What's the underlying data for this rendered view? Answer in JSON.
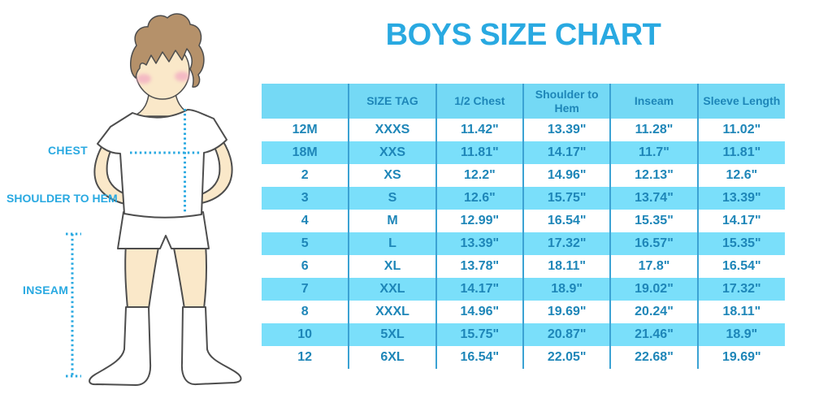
{
  "title": "BOYS SIZE CHART",
  "figure": {
    "labels": {
      "chest": "CHEST",
      "shoulder_to_hem": "SHOULDER TO HEM",
      "inseam": "INSEAM"
    }
  },
  "chart_data": {
    "type": "table",
    "title": "BOYS SIZE CHART",
    "columns": [
      "",
      "SIZE TAG",
      "1/2 Chest",
      "Shoulder to Hem",
      "Inseam",
      "Sleeve Length"
    ],
    "rows": [
      [
        "12M",
        "XXXS",
        "11.42\"",
        "13.39\"",
        "11.28\"",
        "11.02\""
      ],
      [
        "18M",
        "XXS",
        "11.81\"",
        "14.17\"",
        "11.7\"",
        "11.81\""
      ],
      [
        "2",
        "XS",
        "12.2\"",
        "14.96\"",
        "12.13\"",
        "12.6\""
      ],
      [
        "3",
        "S",
        "12.6\"",
        "15.75\"",
        "13.74\"",
        "13.39\""
      ],
      [
        "4",
        "M",
        "12.99\"",
        "16.54\"",
        "15.35\"",
        "14.17\""
      ],
      [
        "5",
        "L",
        "13.39\"",
        "17.32\"",
        "16.57\"",
        "15.35\""
      ],
      [
        "6",
        "XL",
        "13.78\"",
        "18.11\"",
        "17.8\"",
        "16.54\""
      ],
      [
        "7",
        "XXL",
        "14.17\"",
        "18.9\"",
        "19.02\"",
        "17.32\""
      ],
      [
        "8",
        "XXXL",
        "14.96\"",
        "19.69\"",
        "20.24\"",
        "18.11\""
      ],
      [
        "10",
        "5XL",
        "15.75\"",
        "20.87\"",
        "21.46\"",
        "18.9\""
      ],
      [
        "12",
        "6XL",
        "16.54\"",
        "22.05\"",
        "22.68\"",
        "19.69\""
      ]
    ],
    "layout": {
      "striped_rows": "even rows cyan",
      "grid": "vertical column separators only"
    }
  },
  "colors": {
    "accent": "#29A9E1",
    "table_fill": "#7ADFFA",
    "table_header_fill": "#74D9F5",
    "table_border": "#3BA2D3",
    "table_text": "#1E86B8",
    "skin": "#FAE8C9",
    "hair": "#B5916A",
    "outline": "#4D4D4D",
    "cheek": "#F3AFC2",
    "garment": "#FFFFFF"
  }
}
